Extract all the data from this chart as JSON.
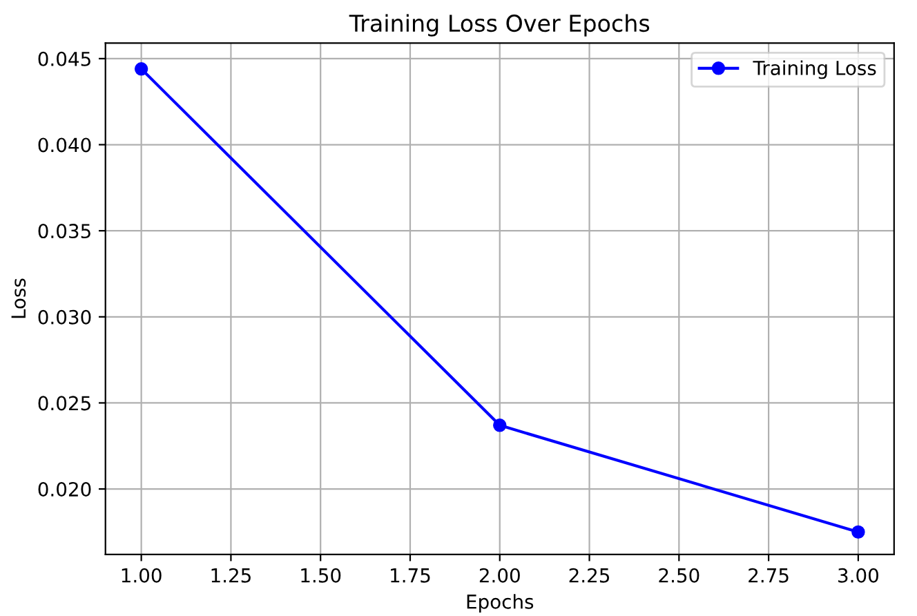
{
  "chart_data": {
    "type": "line",
    "title": "Training Loss Over Epochs",
    "xlabel": "Epochs",
    "ylabel": "Loss",
    "x": [
      1,
      2,
      3
    ],
    "series": [
      {
        "name": "Training Loss",
        "color": "#0000ff",
        "values": [
          0.0444,
          0.0237,
          0.0175
        ]
      }
    ],
    "xlim": [
      0.9,
      3.1
    ],
    "xticks": [
      {
        "value": 1.0,
        "label": "1.00"
      },
      {
        "value": 1.25,
        "label": "1.25"
      },
      {
        "value": 1.5,
        "label": "1.50"
      },
      {
        "value": 1.75,
        "label": "1.75"
      },
      {
        "value": 2.0,
        "label": "2.00"
      },
      {
        "value": 2.25,
        "label": "2.25"
      },
      {
        "value": 2.5,
        "label": "2.50"
      },
      {
        "value": 2.75,
        "label": "2.75"
      },
      {
        "value": 3.0,
        "label": "3.00"
      }
    ],
    "ylim": [
      0.0162,
      0.0459
    ],
    "yticks": [
      {
        "value": 0.02,
        "label": "0.020"
      },
      {
        "value": 0.025,
        "label": "0.025"
      },
      {
        "value": 0.03,
        "label": "0.030"
      },
      {
        "value": 0.035,
        "label": "0.035"
      },
      {
        "value": 0.04,
        "label": "0.040"
      },
      {
        "value": 0.045,
        "label": "0.045"
      }
    ],
    "grid": true,
    "legend": "top right",
    "marker": "circle",
    "line_style": "solid"
  }
}
